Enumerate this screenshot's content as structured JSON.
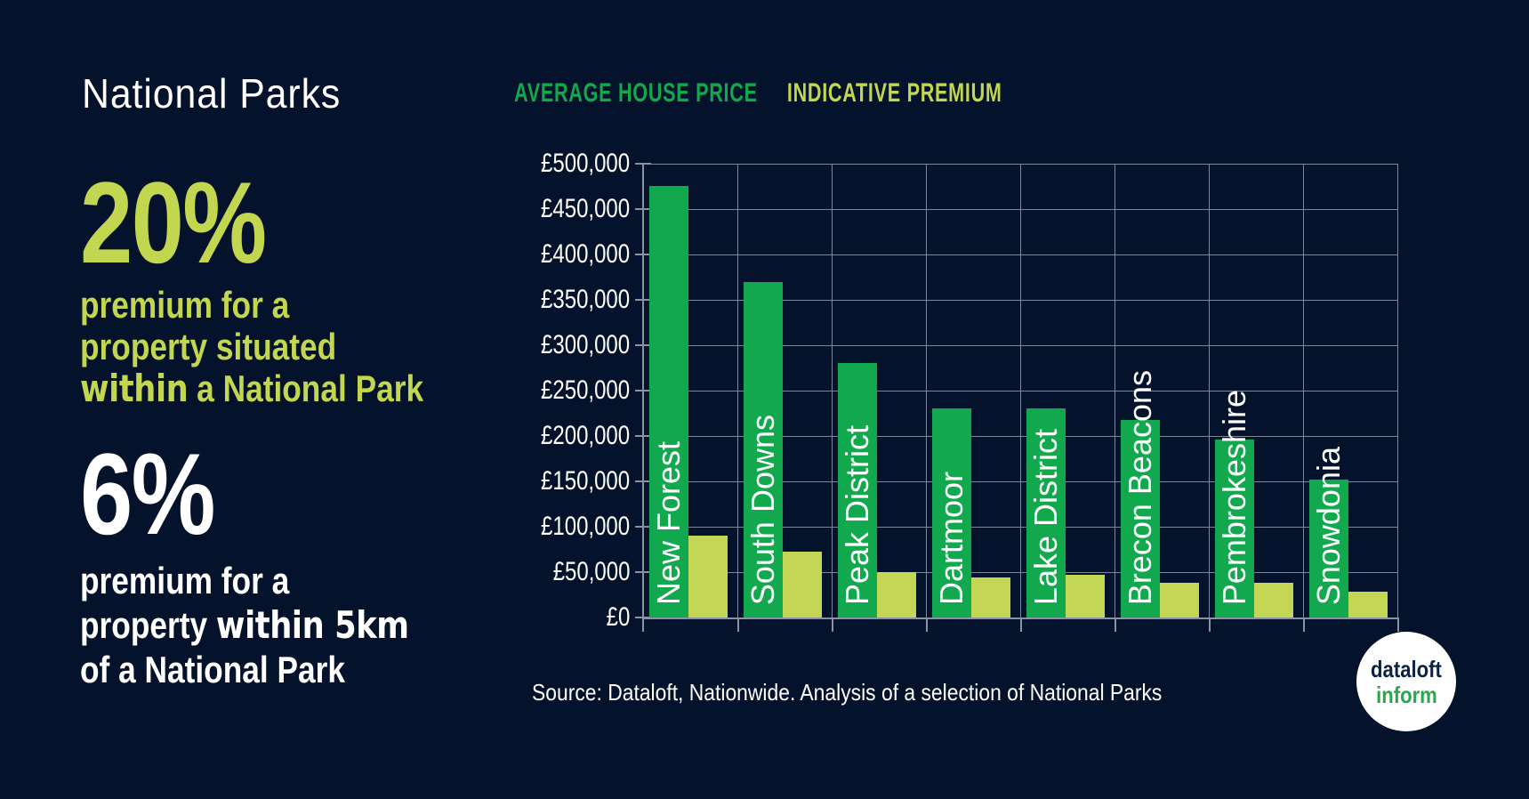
{
  "background": "#05122b",
  "left_panel": {
    "title": "National Parks",
    "stat_within": {
      "value": "20%",
      "line1": "premium for a",
      "line2": "property situated",
      "line3_heavy": "within",
      "line3_rest": " a National Park",
      "color": "#c3d64f"
    },
    "stat_near": {
      "value": "6%",
      "line1": "premium for a",
      "line2_pre": "property ",
      "line2_heavy": "within 5km",
      "line3": "of a National Park",
      "color": "#ffffff"
    }
  },
  "legend": {
    "average_house_price": "AVERAGE HOUSE PRICE",
    "indicative_premium": "INDICATIVE PREMIUM",
    "average_color": "#12a84e",
    "premium_color": "#c3d64f"
  },
  "chart_data": {
    "type": "bar",
    "categories": [
      "New Forest",
      "South Downs",
      "Peak District",
      "Dartmoor",
      "Lake District",
      "Brecon Beacons",
      "Pembrokeshire",
      "Snowdonia"
    ],
    "series": [
      {
        "name": "Average house price",
        "color": "#12a84e",
        "values": [
          475000,
          370000,
          280000,
          230000,
          230000,
          218000,
          196000,
          152000
        ]
      },
      {
        "name": "Indicative premium",
        "color": "#c4d755",
        "values": [
          90000,
          73000,
          50000,
          44000,
          47000,
          38000,
          38000,
          28000
        ]
      }
    ],
    "ylim": [
      0,
      500000
    ],
    "ytick_step": 50000,
    "ytick_labels": [
      "£0",
      "£50,000",
      "£100,000",
      "£150,000",
      "£200,000",
      "£250,000",
      "£300,000",
      "£350,000",
      "£400,000",
      "£450,000",
      "£500,000"
    ],
    "grid": true,
    "legend_position": "top",
    "bar_label_color": "#ffffff"
  },
  "footer": {
    "source": "Source: Dataloft, Nationwide. Analysis of a selection of National Parks"
  },
  "logo": {
    "line1": "dataloft",
    "line2": "inform",
    "line1_color": "#0d2342",
    "line2_color": "#2aa84c"
  }
}
